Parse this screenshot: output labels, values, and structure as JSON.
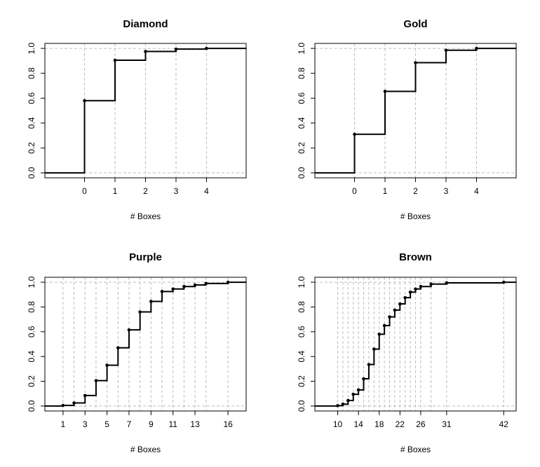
{
  "chart_data": [
    {
      "type": "line",
      "subtype": "ecdf-step",
      "title": "Diamond",
      "xlabel": "# Boxes",
      "ylabel": "",
      "xlim": [
        -1.3,
        5.3
      ],
      "ylim": [
        0,
        1
      ],
      "xticks": [
        "0",
        "1",
        "2",
        "3",
        "4"
      ],
      "yticks": [
        "0.0",
        "0.2",
        "0.4",
        "0.6",
        "0.8",
        "1.0"
      ],
      "grid": "dashed at each jump x and at y=0, y=1",
      "points": [
        {
          "x": 0,
          "y": 0.58
        },
        {
          "x": 1,
          "y": 0.905
        },
        {
          "x": 2,
          "y": 0.975
        },
        {
          "x": 3,
          "y": 0.994
        },
        {
          "x": 4,
          "y": 1.0
        }
      ]
    },
    {
      "type": "line",
      "subtype": "ecdf-step",
      "title": "Gold",
      "xlabel": "# Boxes",
      "ylabel": "",
      "xlim": [
        -1.3,
        5.3
      ],
      "ylim": [
        0,
        1
      ],
      "xticks": [
        "0",
        "1",
        "2",
        "3",
        "4"
      ],
      "yticks": [
        "0.0",
        "0.2",
        "0.4",
        "0.6",
        "0.8",
        "1.0"
      ],
      "grid": "dashed at each jump x and at y=0, y=1",
      "points": [
        {
          "x": 0,
          "y": 0.31
        },
        {
          "x": 1,
          "y": 0.655
        },
        {
          "x": 2,
          "y": 0.885
        },
        {
          "x": 3,
          "y": 0.985
        },
        {
          "x": 4,
          "y": 1.0
        }
      ]
    },
    {
      "type": "line",
      "subtype": "ecdf-step",
      "title": "Purple",
      "xlabel": "# Boxes",
      "ylabel": "",
      "xlim": [
        -0.65,
        17.65
      ],
      "ylim": [
        0,
        1
      ],
      "xticks": [
        "1",
        "3",
        "5",
        "7",
        "9",
        "11",
        "13",
        "16"
      ],
      "yticks": [
        "0.0",
        "0.2",
        "0.4",
        "0.6",
        "0.8",
        "1.0"
      ],
      "grid": "dashed at each jump x and at y=0, y=1",
      "points": [
        {
          "x": 1,
          "y": 0.005
        },
        {
          "x": 2,
          "y": 0.025
        },
        {
          "x": 3,
          "y": 0.085
        },
        {
          "x": 4,
          "y": 0.205
        },
        {
          "x": 5,
          "y": 0.33
        },
        {
          "x": 6,
          "y": 0.47
        },
        {
          "x": 7,
          "y": 0.615
        },
        {
          "x": 8,
          "y": 0.76
        },
        {
          "x": 9,
          "y": 0.845
        },
        {
          "x": 10,
          "y": 0.925
        },
        {
          "x": 11,
          "y": 0.945
        },
        {
          "x": 12,
          "y": 0.965
        },
        {
          "x": 13,
          "y": 0.978
        },
        {
          "x": 14,
          "y": 0.99
        },
        {
          "x": 16,
          "y": 1.0
        }
      ]
    },
    {
      "type": "line",
      "subtype": "ecdf-step",
      "title": "Brown",
      "xlabel": "# Boxes",
      "ylabel": "",
      "xlim": [
        5.6,
        44.4
      ],
      "ylim": [
        0,
        1
      ],
      "xticks": [
        "10",
        "14",
        "18",
        "22",
        "26",
        "31",
        "42"
      ],
      "yticks": [
        "0.0",
        "0.2",
        "0.4",
        "0.6",
        "0.8",
        "1.0"
      ],
      "grid": "dashed at each jump x and at y=0, y=1",
      "points": [
        {
          "x": 10,
          "y": 0.003
        },
        {
          "x": 11,
          "y": 0.015
        },
        {
          "x": 12,
          "y": 0.045
        },
        {
          "x": 13,
          "y": 0.095
        },
        {
          "x": 14,
          "y": 0.13
        },
        {
          "x": 15,
          "y": 0.22
        },
        {
          "x": 16,
          "y": 0.335
        },
        {
          "x": 17,
          "y": 0.46
        },
        {
          "x": 18,
          "y": 0.58
        },
        {
          "x": 19,
          "y": 0.65
        },
        {
          "x": 20,
          "y": 0.72
        },
        {
          "x": 21,
          "y": 0.775
        },
        {
          "x": 22,
          "y": 0.825
        },
        {
          "x": 23,
          "y": 0.875
        },
        {
          "x": 24,
          "y": 0.92
        },
        {
          "x": 25,
          "y": 0.945
        },
        {
          "x": 26,
          "y": 0.965
        },
        {
          "x": 28,
          "y": 0.985
        },
        {
          "x": 31,
          "y": 0.995
        },
        {
          "x": 42,
          "y": 1.0
        }
      ]
    }
  ]
}
